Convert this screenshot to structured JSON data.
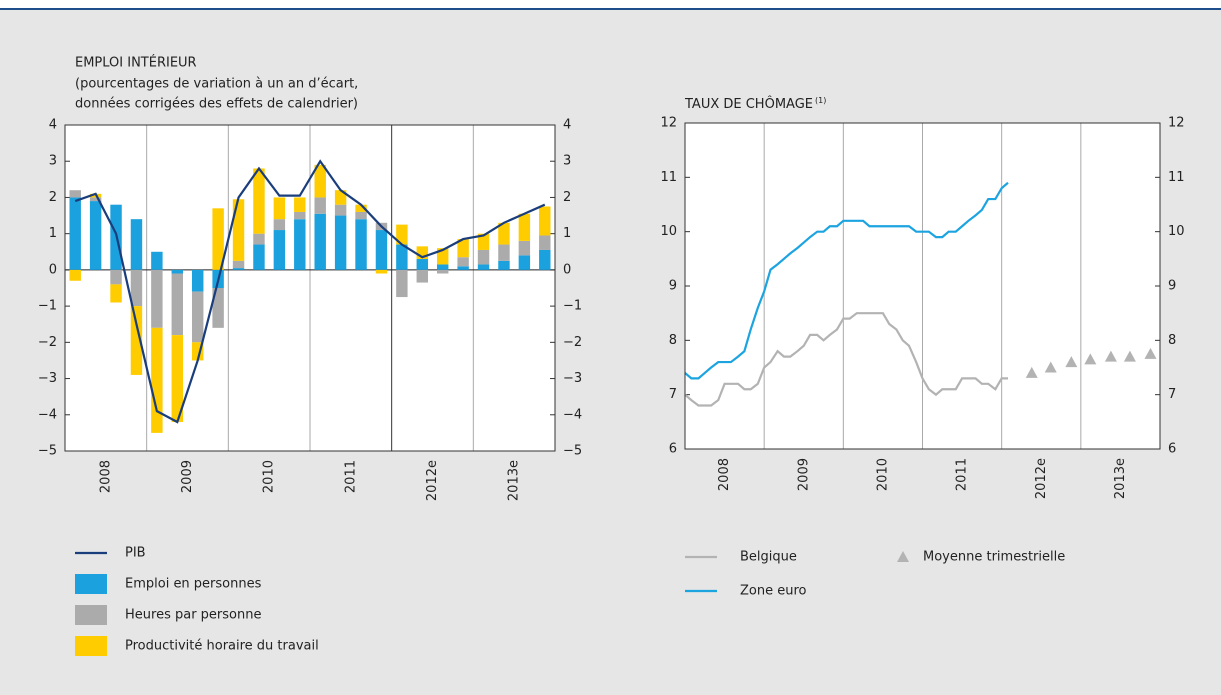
{
  "chart_data": [
    {
      "type": "bar",
      "stacked": true,
      "title": "EMPLOI INTÉRIEUR",
      "subtitle": [
        "(pourcentages de variation à un an d’écart,",
        "données corrigées des effets de calendrier)"
      ],
      "categories": [
        null,
        null,
        null,
        null,
        null,
        null,
        null,
        null,
        null,
        null,
        null,
        null,
        null,
        null,
        null,
        null,
        null,
        null,
        null,
        null,
        null,
        null,
        null,
        null
      ],
      "groups": [
        "2008",
        "2009",
        "2010",
        "2011",
        "2012e",
        "2013e"
      ],
      "divider": 16,
      "series": [
        {
          "name": "PIB",
          "type": "line",
          "color": "#1a3d7c",
          "values": [
            1.9,
            2.1,
            1.0,
            -1.5,
            -3.9,
            -4.2,
            -2.5,
            -0.3,
            2.0,
            2.8,
            2.05,
            2.05,
            3.0,
            2.2,
            1.8,
            1.2,
            0.7,
            0.35,
            0.55,
            0.85,
            0.95,
            1.3,
            1.55,
            1.8
          ]
        },
        {
          "name": "Emploi en personnes",
          "color": "#1ba1dd",
          "values": [
            2.0,
            1.9,
            1.8,
            1.4,
            0.5,
            -0.1,
            -0.6,
            -0.5,
            0.05,
            0.7,
            1.1,
            1.4,
            1.55,
            1.5,
            1.4,
            1.1,
            0.7,
            0.3,
            0.15,
            0.1,
            0.15,
            0.25,
            0.4,
            0.55
          ]
        },
        {
          "name": "Heures par personne",
          "color": "#ababab",
          "values": [
            0.2,
            0.1,
            -0.4,
            -1.0,
            -1.6,
            -1.7,
            -1.4,
            -1.1,
            0.2,
            0.3,
            0.3,
            0.2,
            0.45,
            0.3,
            0.2,
            0.2,
            -0.75,
            -0.35,
            -0.1,
            0.25,
            0.4,
            0.45,
            0.4,
            0.4
          ]
        },
        {
          "name": "Productivité horaire du travail",
          "color": "#ffcc00",
          "values": [
            -0.3,
            0.1,
            -0.5,
            -1.9,
            -2.9,
            -2.4,
            -0.5,
            1.7,
            1.7,
            1.8,
            0.6,
            0.4,
            0.9,
            0.4,
            0.2,
            -0.1,
            0.55,
            0.35,
            0.45,
            0.5,
            0.45,
            0.6,
            0.75,
            0.8
          ]
        }
      ],
      "ylim": [
        -5,
        4
      ],
      "yticks": [
        {
          "value": -5,
          "label": "−5"
        },
        {
          "value": -4,
          "label": "−4"
        },
        {
          "value": -3,
          "label": "−3"
        },
        {
          "value": -2,
          "label": "−2"
        },
        {
          "value": -1,
          "label": "−1"
        },
        0,
        1,
        2,
        3,
        4
      ]
    },
    {
      "type": "line",
      "title": "TAUX DE CHÔMAGE",
      "title_note": "(1)",
      "x": [
        2008.0,
        2008.08,
        2008.17,
        2008.25,
        2008.33,
        2008.42,
        2008.5,
        2008.58,
        2008.67,
        2008.75,
        2008.83,
        2008.92,
        2009.0,
        2009.08,
        2009.17,
        2009.25,
        2009.33,
        2009.42,
        2009.5,
        2009.58,
        2009.67,
        2009.75,
        2009.83,
        2009.92,
        2010.0,
        2010.08,
        2010.17,
        2010.25,
        2010.33,
        2010.42,
        2010.5,
        2010.58,
        2010.67,
        2010.75,
        2010.83,
        2010.92,
        2011.0,
        2011.08,
        2011.17,
        2011.25,
        2011.33,
        2011.42,
        2011.5,
        2011.58,
        2011.67,
        2011.75,
        2011.83,
        2011.92,
        2012.0,
        2012.08
      ],
      "series": [
        {
          "name": "Belgique",
          "color": "#b3b3b3",
          "values": [
            7.0,
            6.9,
            6.8,
            6.8,
            6.8,
            6.9,
            7.2,
            7.2,
            7.2,
            7.1,
            7.1,
            7.2,
            7.5,
            7.6,
            7.8,
            7.7,
            7.7,
            7.8,
            7.9,
            8.1,
            8.1,
            8.0,
            8.1,
            8.2,
            8.4,
            8.4,
            8.5,
            8.5,
            8.5,
            8.5,
            8.5,
            8.3,
            8.2,
            8.0,
            7.9,
            7.6,
            7.3,
            7.1,
            7.0,
            7.1,
            7.1,
            7.1,
            7.3,
            7.3,
            7.3,
            7.2,
            7.2,
            7.1,
            7.3,
            7.3
          ]
        },
        {
          "name": "Zone euro",
          "color": "#1ca4e0",
          "values": [
            7.4,
            7.3,
            7.3,
            7.4,
            7.5,
            7.6,
            7.6,
            7.6,
            7.7,
            7.8,
            8.2,
            8.6,
            8.9,
            9.3,
            9.4,
            9.5,
            9.6,
            9.7,
            9.8,
            9.9,
            10.0,
            10.0,
            10.1,
            10.1,
            10.2,
            10.2,
            10.2,
            10.2,
            10.1,
            10.1,
            10.1,
            10.1,
            10.1,
            10.1,
            10.1,
            10.0,
            10.0,
            10.0,
            9.9,
            9.9,
            10.0,
            10.0,
            10.1,
            10.2,
            10.3,
            10.4,
            10.6,
            10.6,
            10.8,
            10.9
          ]
        },
        {
          "name": "Moyenne trimestrielle",
          "type": "scatter",
          "marker": "triangle",
          "color": "#b3b3b3",
          "x": [
            2012.38,
            2012.62,
            2012.88,
            2013.12,
            2013.38,
            2013.62,
            2013.88
          ],
          "values": [
            7.4,
            7.5,
            7.6,
            7.65,
            7.7,
            7.7,
            7.75
          ]
        }
      ],
      "xlim": [
        2008,
        2014
      ],
      "xticks": [
        {
          "value": 2008.5,
          "label": "2008"
        },
        {
          "value": 2009.5,
          "label": "2009"
        },
        {
          "value": 2010.5,
          "label": "2010"
        },
        {
          "value": 2011.5,
          "label": "2011"
        },
        {
          "value": 2012.5,
          "label": "2012e"
        },
        {
          "value": 2013.5,
          "label": "2013e"
        }
      ],
      "xgrid": [
        2009,
        2010,
        2011,
        2012,
        2013
      ],
      "ylim": [
        6,
        12
      ],
      "yticks": [
        6,
        7,
        8,
        9,
        10,
        11,
        12
      ]
    }
  ]
}
